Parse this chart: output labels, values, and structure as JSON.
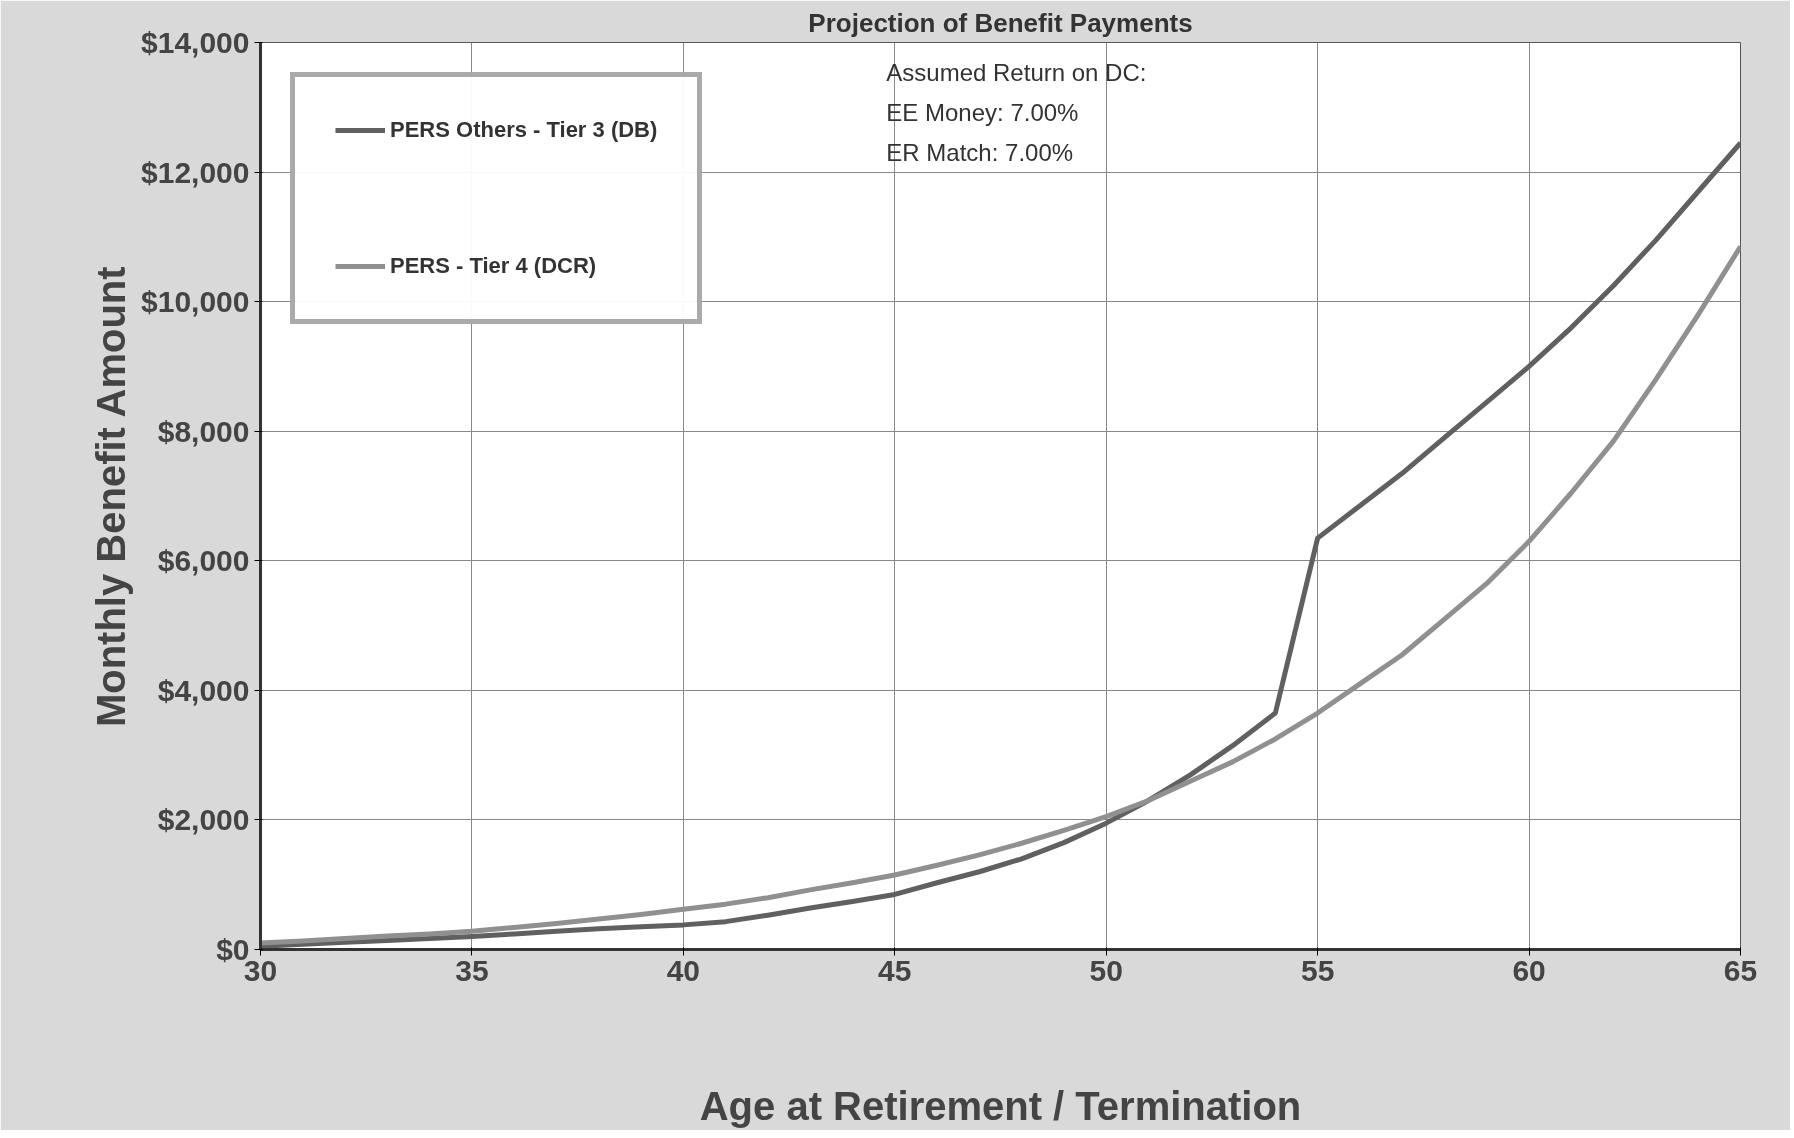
{
  "chart_data": {
    "type": "line",
    "title": "Projection of Benefit Payments",
    "xlabel": "Age at Retirement / Termination",
    "ylabel": "Monthly Benefit Amount",
    "x": [
      30,
      31,
      32,
      33,
      34,
      35,
      36,
      37,
      38,
      39,
      40,
      41,
      42,
      43,
      44,
      45,
      46,
      47,
      48,
      49,
      50,
      51,
      52,
      53,
      54,
      55,
      56,
      57,
      58,
      59,
      60,
      61,
      62,
      63,
      64,
      65
    ],
    "series": [
      {
        "name": "PERS Others - Tier 3 (DB)",
        "color": "#606060",
        "values": [
          50,
          80,
          110,
          140,
          170,
          200,
          240,
          280,
          320,
          350,
          380,
          430,
          530,
          640,
          740,
          850,
          1030,
          1200,
          1400,
          1650,
          1950,
          2300,
          2700,
          3150,
          3650,
          6350,
          6850,
          7350,
          7900,
          8450,
          9000,
          9600,
          10250,
          10950,
          11700,
          12450
        ]
      },
      {
        "name": "PERS - Tier 4 (DCR)",
        "color": "#909090",
        "values": [
          100,
          130,
          170,
          210,
          240,
          280,
          340,
          400,
          470,
          540,
          620,
          700,
          800,
          920,
          1030,
          1150,
          1300,
          1460,
          1640,
          1840,
          2050,
          2300,
          2600,
          2900,
          3250,
          3650,
          4100,
          4550,
          5100,
          5650,
          6300,
          7050,
          7850,
          8800,
          9800,
          10850
        ]
      }
    ],
    "xlim": [
      30,
      65
    ],
    "xticks": [
      30,
      35,
      40,
      45,
      50,
      55,
      60,
      65
    ],
    "ylim": [
      0,
      14000
    ],
    "yticks": [
      {
        "value": 0,
        "label": "$0"
      },
      {
        "value": 2000,
        "label": "$2,000"
      },
      {
        "value": 4000,
        "label": "$4,000"
      },
      {
        "value": 6000,
        "label": "$6,000"
      },
      {
        "value": 8000,
        "label": "$8,000"
      },
      {
        "value": 10000,
        "label": "$10,000"
      },
      {
        "value": 12000,
        "label": "$12,000"
      },
      {
        "value": 14000,
        "label": "$14,000"
      }
    ],
    "annotations": [
      "Assumed Return on DC:",
      "EE Money: 7.00%",
      "ER Match: 7.00%"
    ],
    "grid": true,
    "legend": "top left",
    "marker": "none",
    "line_style": "solid"
  }
}
